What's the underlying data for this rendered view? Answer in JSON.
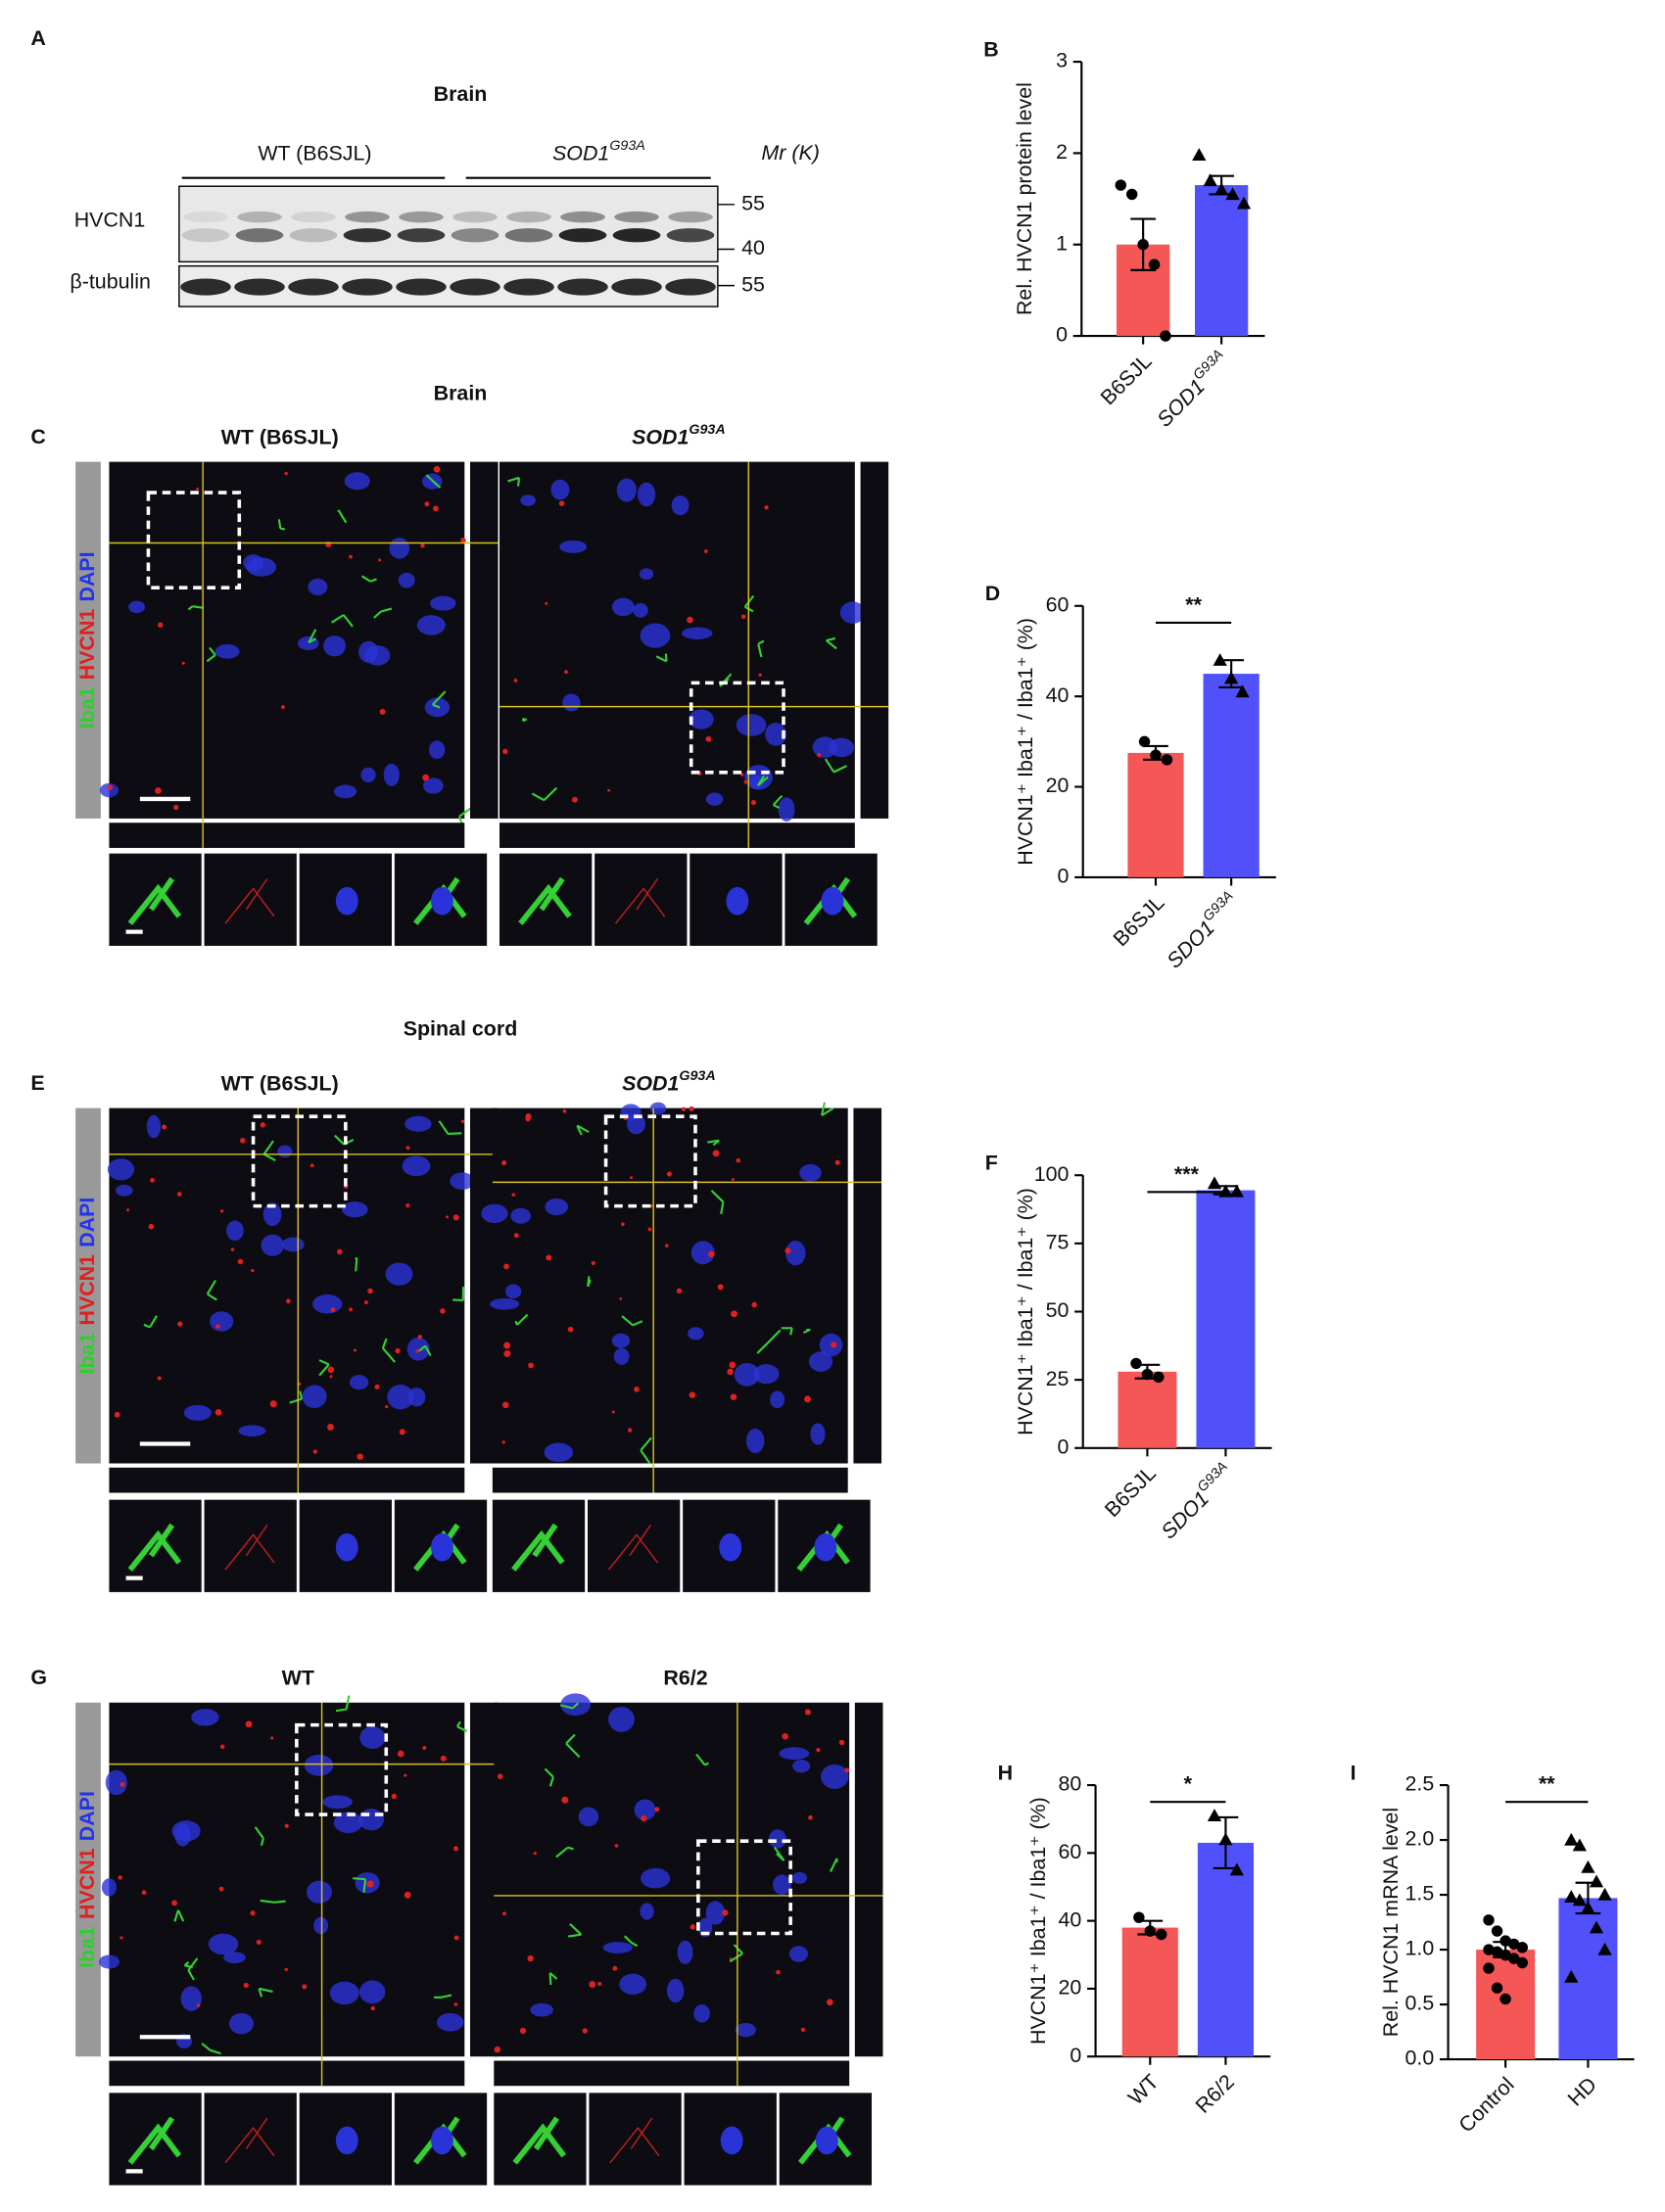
{
  "blot": {
    "panel": "A",
    "title": "Brain",
    "groups": [
      {
        "name": "WT (B6SJL)"
      },
      {
        "name": "SOD1",
        "superscript": "G93A"
      }
    ],
    "mr_label": "Mr (K)",
    "rows": [
      "HVCN1",
      "β-tubulin"
    ],
    "markers": [
      "55",
      "40",
      "55"
    ]
  },
  "micrographs": [
    {
      "panel": "C",
      "title": "Brain",
      "columns": [
        {
          "name": "WT (B6SJL)"
        },
        {
          "name": "SOD1",
          "superscript": "G93A"
        }
      ],
      "stains": [
        "Iba1",
        "HVCN1",
        "DAPI"
      ]
    },
    {
      "panel": "E",
      "title": "Spinal cord",
      "columns": [
        {
          "name": "WT (B6SJL)"
        },
        {
          "name": "SOD1",
          "superscript": "G93A"
        }
      ],
      "stains": [
        "Iba1",
        "HVCN1",
        "DAPI"
      ]
    },
    {
      "panel": "G",
      "columns": [
        {
          "name": "WT"
        },
        {
          "name": "R6/2"
        }
      ],
      "stains": [
        "Iba1",
        "HVCN1",
        "DAPI"
      ]
    }
  ],
  "chart_data": [
    {
      "type": "bar",
      "panel": "B",
      "ylabel": "Rel. HVCN1 protein level",
      "ylim": [
        0,
        3
      ],
      "yticks": [
        0,
        1,
        2,
        3
      ],
      "categories": [
        "B6SJL",
        "SOD1"
      ],
      "category_superscripts": [
        null,
        "G93A"
      ],
      "values": [
        1.0,
        1.65
      ],
      "errors": [
        0.28,
        0.1
      ],
      "points": [
        [
          1.65,
          1.55,
          1.0,
          0.78,
          0.0
        ],
        [
          1.98,
          1.7,
          1.6,
          1.55,
          1.45
        ]
      ],
      "colors": [
        "#f55656",
        "#5151fb"
      ],
      "markers": [
        "circle",
        "triangle"
      ]
    },
    {
      "type": "bar",
      "panel": "D",
      "ylabel": "HVCN1⁺ Iba1⁺ / Iba1⁺ (%)",
      "ylim": [
        0,
        60
      ],
      "yticks": [
        0,
        20,
        40,
        60
      ],
      "categories": [
        "B6SJL",
        "SDO1"
      ],
      "category_superscripts": [
        null,
        "G93A"
      ],
      "values": [
        27.5,
        45
      ],
      "errors": [
        1.5,
        3
      ],
      "points": [
        [
          30,
          27,
          26
        ],
        [
          48,
          44,
          41
        ]
      ],
      "colors": [
        "#f55656",
        "#5151fb"
      ],
      "markers": [
        "circle",
        "triangle"
      ],
      "significance": "**"
    },
    {
      "type": "bar",
      "panel": "F",
      "ylabel": "HVCN1⁺ Iba1⁺ / Iba1⁺ (%)",
      "ylim": [
        0,
        100
      ],
      "yticks": [
        0,
        25,
        50,
        75,
        100
      ],
      "categories": [
        "B6SJL",
        "SDO1"
      ],
      "category_superscripts": [
        null,
        "G93A"
      ],
      "values": [
        28,
        94.5
      ],
      "errors": [
        2.5,
        1.5
      ],
      "points": [
        [
          31,
          27,
          26
        ],
        [
          97,
          94,
          94
        ]
      ],
      "colors": [
        "#f55656",
        "#5151fb"
      ],
      "markers": [
        "circle",
        "triangle"
      ],
      "significance": "***"
    },
    {
      "type": "bar",
      "panel": "H",
      "ylabel": "HVCN1⁺ Iba1⁺ / Iba1⁺ (%)",
      "ylim": [
        0,
        80
      ],
      "yticks": [
        0,
        20,
        40,
        60,
        80
      ],
      "categories": [
        "WT",
        "R6/2"
      ],
      "category_superscripts": [
        null,
        null
      ],
      "values": [
        38,
        63
      ],
      "errors": [
        2,
        7.5
      ],
      "points": [
        [
          41,
          37,
          36
        ],
        [
          71,
          64,
          55
        ]
      ],
      "colors": [
        "#f55656",
        "#5151fb"
      ],
      "markers": [
        "circle",
        "triangle"
      ],
      "significance": "*"
    },
    {
      "type": "bar",
      "panel": "I",
      "ylabel": "Rel. HVCN1 mRNA level",
      "ylim": [
        0,
        2.5
      ],
      "yticks": [
        {
          "value": 0,
          "label": "0.0"
        },
        {
          "value": 0.5,
          "label": "0.5"
        },
        {
          "value": 1,
          "label": "1.0"
        },
        {
          "value": 1.5,
          "label": "1.5"
        },
        {
          "value": 2,
          "label": "2.0"
        },
        {
          "value": 2.5,
          "label": "2.5"
        }
      ],
      "categories": [
        "Control",
        "HD"
      ],
      "category_superscripts": [
        null,
        null
      ],
      "values": [
        1.0,
        1.47
      ],
      "errors": [
        0.07,
        0.14
      ],
      "points": [
        [
          1.27,
          1.17,
          1.08,
          1.05,
          1.02,
          1.0,
          0.98,
          0.95,
          0.92,
          0.88,
          0.83,
          0.65,
          0.55
        ],
        [
          2.0,
          1.95,
          1.75,
          1.62,
          1.5,
          1.48,
          1.45,
          1.38,
          1.2,
          1.0,
          0.75
        ]
      ],
      "colors": [
        "#f55656",
        "#5151fb"
      ],
      "markers": [
        "circle",
        "triangle"
      ],
      "significance": "**"
    }
  ]
}
